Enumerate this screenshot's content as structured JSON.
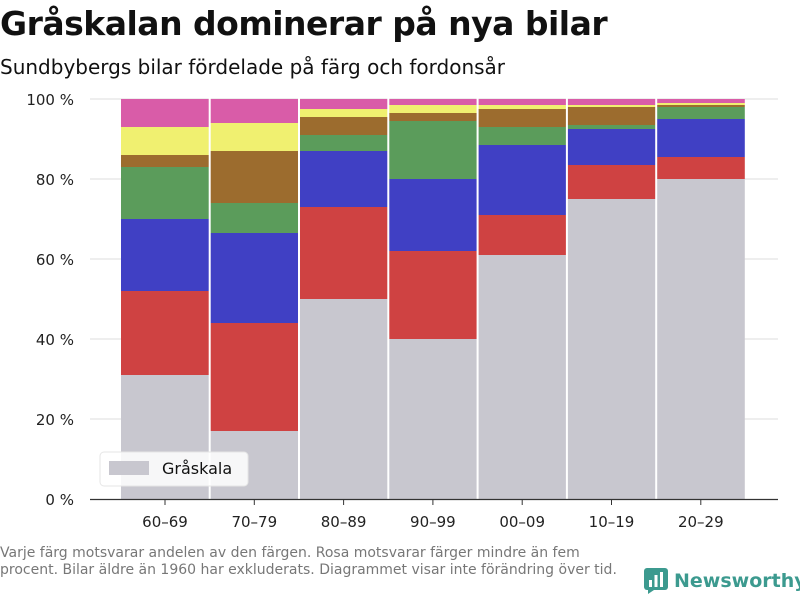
{
  "header": {
    "title": "Gråskalan dominerar på nya bilar",
    "subtitle": "Sundbybergs bilar fördelade på färg och fordonsår"
  },
  "footer": {
    "note": "Varje färg motsvarar andelen av den färgen. Rosa motsvarar färger mindre än fem procent. Bilar äldre än 1960 har exkluderats. Diagrammet visar inte förändring över tid.",
    "brand": "Newsworthy",
    "brand_color": "#3c9a8f"
  },
  "chart_data": {
    "type": "bar",
    "stacked": true,
    "categories": [
      "60–69",
      "70–79",
      "80–89",
      "90–99",
      "00–09",
      "10–19",
      "20–29"
    ],
    "widths": [
      29,
      29,
      29,
      29,
      29,
      29,
      29
    ],
    "ylim": [
      0,
      100
    ],
    "yticks": [
      0,
      20,
      40,
      60,
      80,
      100
    ],
    "ytick_labels": [
      "0 %",
      "20 %",
      "40 %",
      "60 %",
      "80 %",
      "100 %"
    ],
    "grid": true,
    "legend": {
      "position": "bottom-left",
      "entries": [
        "Gråskala"
      ]
    },
    "series": [
      {
        "name": "Gråskala",
        "color": "#c8c7cf",
        "values": [
          31,
          17,
          50,
          40,
          61,
          75,
          80
        ]
      },
      {
        "color": "#cf4242",
        "values": [
          21,
          27,
          23,
          22,
          10,
          8.5,
          5.5
        ]
      },
      {
        "color": "#4040c4",
        "values": [
          18,
          22.5,
          14,
          18,
          17.5,
          9,
          9.5
        ]
      },
      {
        "color": "#5b9c5b",
        "values": [
          13,
          7.5,
          4,
          14.5,
          4.5,
          1,
          3
        ]
      },
      {
        "color": "#9c6c2e",
        "values": [
          3,
          13,
          4.5,
          2,
          4.5,
          4.5,
          0.5
        ]
      },
      {
        "color": "#f0f070",
        "values": [
          7,
          7,
          2,
          2,
          1,
          0.5,
          0.5
        ]
      },
      {
        "color": "#d95ca8",
        "values": [
          7,
          6,
          2.5,
          1.5,
          1.5,
          1.5,
          1
        ]
      }
    ]
  }
}
